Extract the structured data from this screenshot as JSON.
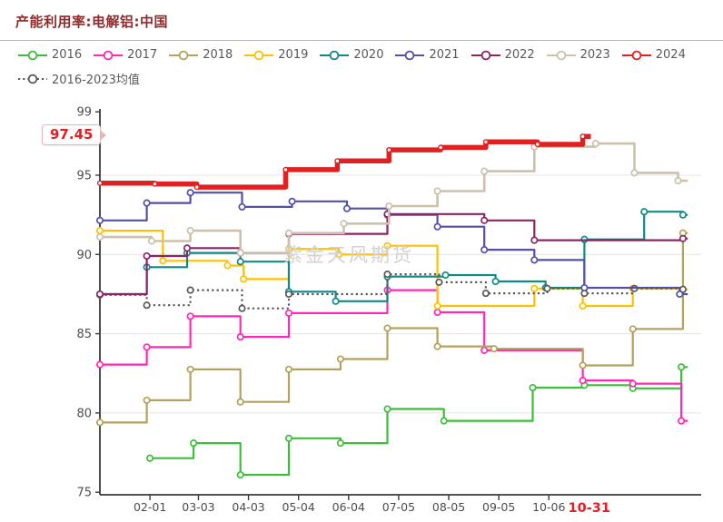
{
  "title": "产能利用率:电解铝:中国",
  "watermark": "紫金天风期货",
  "annotations": {
    "latest_value": "97.45",
    "latest_date_label": "10-31",
    "latest_value_color": "#e02121"
  },
  "colors": {
    "title": "#8f2b2b",
    "axis_line": "#3a3a3a",
    "axis_text": "#4d4d4d",
    "legend_text": "#595959",
    "gridline": "#e4e4e4",
    "highlight_red": "#e02121",
    "watermark_gray": "#d2d2d2"
  },
  "chart_data": {
    "type": "line",
    "step": true,
    "title": "产能利用率:电解铝:中国",
    "legend_position": "top",
    "grid": true,
    "y_axis": {
      "ticks": [
        99,
        95,
        90,
        85,
        80,
        75
      ],
      "gridline_values": [
        95,
        90,
        85,
        80
      ],
      "range": [
        75,
        99
      ]
    },
    "x_axis": {
      "unit": "day-of-year",
      "tick_days": [
        32,
        62,
        93,
        124,
        155,
        186,
        217,
        248,
        279
      ],
      "tick_labels": [
        "02-01",
        "03-03",
        "04-03",
        "05-04",
        "06-04",
        "07-05",
        "08-05",
        "09-05",
        "10-06"
      ],
      "highlight_day": 304,
      "highlight_label": "10-31"
    },
    "series": [
      {
        "name": "2016",
        "color": "#3bbf3b",
        "end_day": 365,
        "points": [
          [
            32,
            77.15
          ],
          [
            59,
            78.1
          ],
          [
            88,
            76.1
          ],
          [
            118,
            78.4
          ],
          [
            150,
            78.1
          ],
          [
            179,
            80.25
          ],
          [
            214,
            79.5
          ],
          [
            269,
            81.6
          ],
          [
            301,
            81.75
          ],
          [
            331,
            81.55
          ],
          [
            361,
            82.9
          ]
        ]
      },
      {
        "name": "2017",
        "color": "#ff29b5",
        "end_day": 365,
        "points": [
          [
            1,
            83.05
          ],
          [
            30,
            84.15
          ],
          [
            57,
            86.1
          ],
          [
            88,
            84.8
          ],
          [
            118,
            86.3
          ],
          [
            179,
            87.75
          ],
          [
            210,
            86.35
          ],
          [
            239,
            83.95
          ],
          [
            300,
            82.05
          ],
          [
            331,
            81.85
          ],
          [
            361,
            79.5
          ]
        ]
      },
      {
        "name": "2018",
        "color": "#b3a15c",
        "end_day": 365,
        "points": [
          [
            1,
            79.4
          ],
          [
            30,
            80.8
          ],
          [
            57,
            82.75
          ],
          [
            88,
            80.7
          ],
          [
            118,
            82.75
          ],
          [
            150,
            83.4
          ],
          [
            179,
            85.35
          ],
          [
            210,
            84.2
          ],
          [
            245,
            84.05
          ],
          [
            300,
            83.0
          ],
          [
            331,
            85.3
          ],
          [
            362,
            91.35
          ]
        ]
      },
      {
        "name": "2019",
        "color": "#ffc000",
        "end_day": 365,
        "points": [
          [
            1,
            91.5
          ],
          [
            40,
            89.6
          ],
          [
            80,
            89.3
          ],
          [
            90,
            88.45
          ],
          [
            118,
            90.35
          ],
          [
            149,
            90.0
          ],
          [
            179,
            90.55
          ],
          [
            210,
            86.75
          ],
          [
            270,
            87.85
          ],
          [
            300,
            86.75
          ],
          [
            331,
            87.85
          ],
          [
            362,
            87.8
          ]
        ]
      },
      {
        "name": "2020",
        "color": "#128989",
        "end_day": 365,
        "points": [
          [
            1,
            87.5
          ],
          [
            30,
            89.2
          ],
          [
            55,
            90.1
          ],
          [
            88,
            89.55
          ],
          [
            118,
            87.65
          ],
          [
            147,
            87.05
          ],
          [
            179,
            88.6
          ],
          [
            215,
            88.7
          ],
          [
            246,
            88.3
          ],
          [
            277,
            87.9
          ],
          [
            301,
            90.95
          ],
          [
            338,
            92.7
          ],
          [
            362,
            92.5
          ]
        ]
      },
      {
        "name": "2021",
        "color": "#5450a5",
        "end_day": 365,
        "points": [
          [
            1,
            92.15
          ],
          [
            30,
            93.25
          ],
          [
            57,
            93.9
          ],
          [
            89,
            93.0
          ],
          [
            120,
            93.35
          ],
          [
            154,
            92.9
          ],
          [
            179,
            92.5
          ],
          [
            210,
            91.75
          ],
          [
            239,
            90.3
          ],
          [
            270,
            89.65
          ],
          [
            301,
            87.9
          ],
          [
            360,
            87.5
          ]
        ]
      },
      {
        "name": "2022",
        "color": "#8b2566",
        "end_day": 365,
        "points": [
          [
            1,
            87.5
          ],
          [
            30,
            89.9
          ],
          [
            55,
            90.4
          ],
          [
            88,
            90.1
          ],
          [
            118,
            91.3
          ],
          [
            179,
            92.55
          ],
          [
            239,
            92.15
          ],
          [
            270,
            90.9
          ],
          [
            362,
            91.0
          ]
        ]
      },
      {
        "name": "2023",
        "color": "#cdc1ac",
        "end_day": 365,
        "points": [
          [
            1,
            91.1
          ],
          [
            33,
            90.85
          ],
          [
            57,
            91.5
          ],
          [
            88,
            90.1
          ],
          [
            118,
            91.35
          ],
          [
            152,
            91.95
          ],
          [
            180,
            93.05
          ],
          [
            210,
            94.0
          ],
          [
            239,
            95.25
          ],
          [
            270,
            96.8
          ],
          [
            308,
            97.0
          ],
          [
            332,
            95.15
          ],
          [
            359,
            94.65
          ]
        ]
      },
      {
        "name": "2024",
        "color": "#e02121",
        "end_day": 305,
        "points": [
          [
            1,
            94.5
          ],
          [
            35,
            94.45
          ],
          [
            61,
            94.25
          ],
          [
            116,
            95.35
          ],
          [
            148,
            95.9
          ],
          [
            180,
            96.6
          ],
          [
            212,
            96.75
          ],
          [
            240,
            97.1
          ],
          [
            272,
            96.95
          ],
          [
            300,
            97.45
          ]
        ]
      },
      {
        "name": "2016-2023均值",
        "color": "#595959",
        "dashed": true,
        "end_day": 365,
        "points": [
          [
            1,
            87.45
          ],
          [
            30,
            86.8
          ],
          [
            57,
            87.75
          ],
          [
            89,
            86.6
          ],
          [
            118,
            87.5
          ],
          [
            179,
            88.75
          ],
          [
            211,
            88.25
          ],
          [
            240,
            87.55
          ],
          [
            278,
            87.85
          ],
          [
            301,
            87.55
          ],
          [
            332,
            87.85
          ],
          [
            362,
            87.8
          ]
        ]
      }
    ]
  }
}
